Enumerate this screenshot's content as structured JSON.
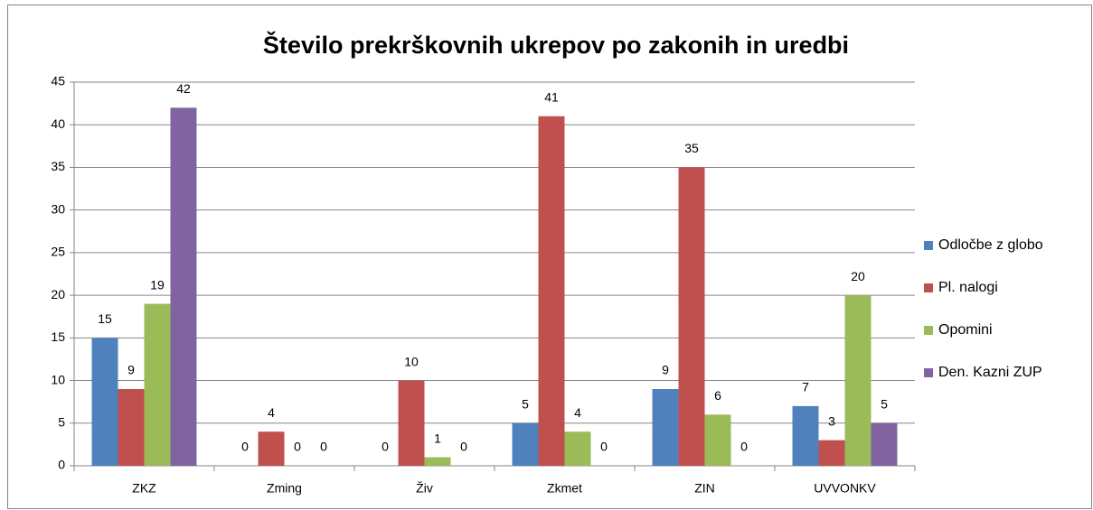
{
  "chart_data": {
    "type": "bar",
    "title": "Število prekrškovnih ukrepov po zakonih in uredbi",
    "categories": [
      "ZKZ",
      "Zming",
      "Živ",
      "Zkmet",
      "ZIN",
      "UVVONKV"
    ],
    "series": [
      {
        "name": "Odločbe z globo",
        "color": "#4f81bd",
        "values": [
          15,
          0,
          0,
          5,
          9,
          7
        ]
      },
      {
        "name": "Pl. nalogi",
        "color": "#c0504d",
        "values": [
          9,
          4,
          10,
          41,
          35,
          3
        ]
      },
      {
        "name": "Opomini",
        "color": "#9bbb59",
        "values": [
          19,
          0,
          1,
          4,
          6,
          20
        ]
      },
      {
        "name": "Den. Kazni ZUP",
        "color": "#8064a2",
        "values": [
          42,
          0,
          0,
          0,
          0,
          5
        ]
      }
    ],
    "ylim": [
      0,
      45
    ],
    "yticks": [
      0,
      5,
      10,
      15,
      20,
      25,
      30,
      35,
      40,
      45
    ],
    "grid": true,
    "legend": "right"
  }
}
